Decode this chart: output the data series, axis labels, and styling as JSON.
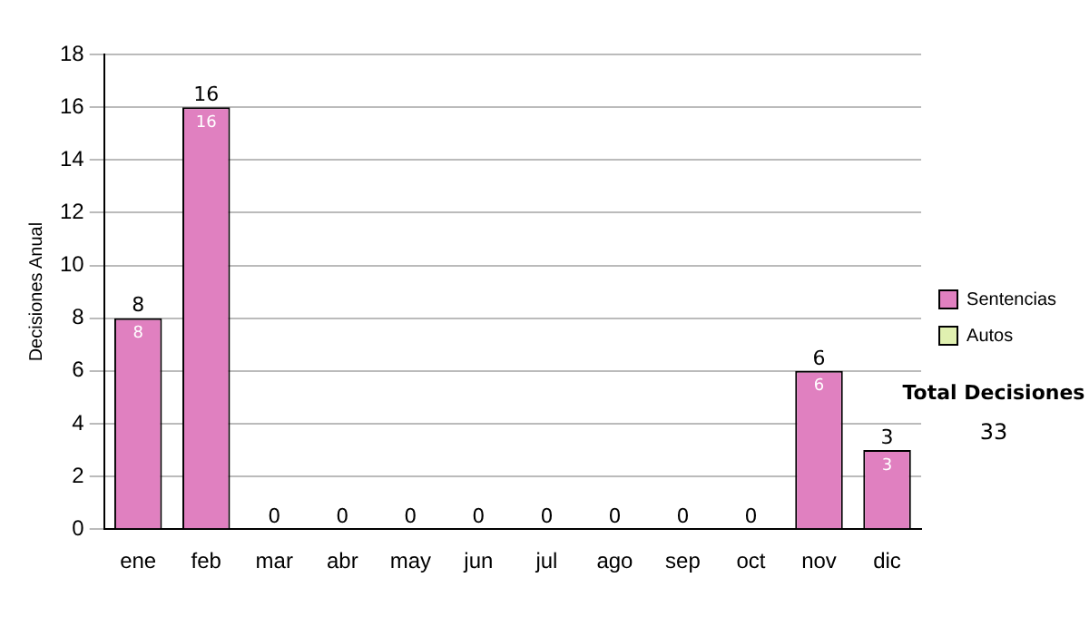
{
  "chart_data": {
    "type": "bar",
    "ylabel": "Decisiones Anual",
    "categories": [
      "ene",
      "feb",
      "mar",
      "abr",
      "may",
      "jun",
      "jul",
      "ago",
      "sep",
      "oct",
      "nov",
      "dic"
    ],
    "series": [
      {
        "name": "Sentencias",
        "color": "#e080c0",
        "values": [
          8,
          16,
          0,
          0,
          0,
          0,
          0,
          0,
          0,
          0,
          6,
          3
        ],
        "value_labels": [
          "8",
          "16",
          null,
          null,
          null,
          null,
          null,
          null,
          null,
          null,
          "6",
          "3"
        ]
      },
      {
        "name": "Autos",
        "color": "#e0f0b0",
        "values": [
          0,
          0,
          0,
          0,
          0,
          0,
          0,
          0,
          0,
          0,
          0,
          0
        ]
      }
    ],
    "stacked": true,
    "totals": [
      "8",
      "16",
      "0",
      "0",
      "0",
      "0",
      "0",
      "0",
      "0",
      "0",
      "6",
      "3"
    ],
    "ylim": [
      0,
      18
    ],
    "yticks": [
      0,
      2,
      4,
      6,
      8,
      10,
      12,
      14,
      16,
      18
    ],
    "grid": "y",
    "legend": "right",
    "annotations": [
      "Total Decisiones",
      "33"
    ]
  }
}
